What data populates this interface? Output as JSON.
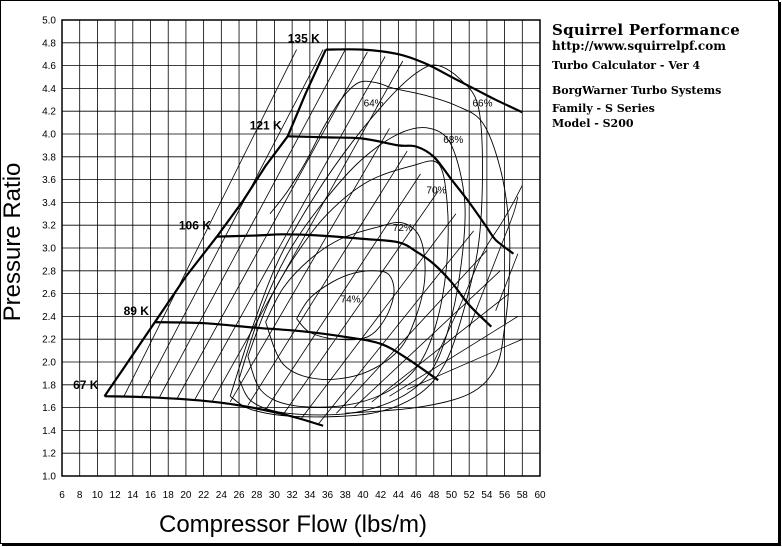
{
  "info": {
    "title": "Squirrel Performance",
    "url": "http://www.squirrelpf.com",
    "calculator": "Turbo Calculator - Ver 4",
    "manufacturer": "BorgWarner Turbo Systems",
    "family": "Family - S Series",
    "model": "Model - S200"
  },
  "chart_data": {
    "type": "line",
    "xlabel": "Compressor Flow (lbs/m)",
    "ylabel": "Pressure Ratio",
    "xlim": [
      6,
      60
    ],
    "ylim": [
      1.0,
      5.0
    ],
    "x_ticks": [
      "6",
      "8",
      "10",
      "12",
      "14",
      "16",
      "18",
      "20",
      "22",
      "24",
      "26",
      "28",
      "30",
      "32",
      "34",
      "36",
      "38",
      "40",
      "42",
      "44",
      "46",
      "48",
      "50",
      "52",
      "54",
      "56",
      "58",
      "60"
    ],
    "y_ticks": [
      "1.0",
      "1.2",
      "1.4",
      "1.6",
      "1.8",
      "2.0",
      "2.2",
      "2.4",
      "2.6",
      "2.8",
      "3.0",
      "3.2",
      "3.4",
      "3.6",
      "3.8",
      "4.0",
      "4.2",
      "4.4",
      "4.6",
      "4.8",
      "5.0"
    ],
    "grid": true,
    "surge_line": [
      [
        10.8,
        1.7
      ],
      [
        13.0,
        1.95
      ],
      [
        16.5,
        2.35
      ],
      [
        20.0,
        2.75
      ],
      [
        23.5,
        3.1
      ],
      [
        26.5,
        3.42
      ],
      [
        29.0,
        3.72
      ],
      [
        31.5,
        3.98
      ],
      [
        33.5,
        4.35
      ],
      [
        35.8,
        4.74
      ]
    ],
    "speed_lines": [
      {
        "name": "67 K",
        "points": [
          [
            10.8,
            1.7
          ],
          [
            16,
            1.69
          ],
          [
            22,
            1.66
          ],
          [
            26,
            1.62
          ],
          [
            30,
            1.56
          ],
          [
            33,
            1.5
          ],
          [
            35.5,
            1.44
          ]
        ]
      },
      {
        "name": "89 K",
        "points": [
          [
            16.5,
            2.35
          ],
          [
            22,
            2.34
          ],
          [
            28,
            2.3
          ],
          [
            33,
            2.27
          ],
          [
            38,
            2.22
          ],
          [
            42,
            2.16
          ],
          [
            45,
            2.03
          ],
          [
            48.5,
            1.84
          ]
        ]
      },
      {
        "name": "106 K",
        "points": [
          [
            23.5,
            3.1
          ],
          [
            28,
            3.11
          ],
          [
            31,
            3.12
          ],
          [
            35,
            3.11
          ],
          [
            40,
            3.08
          ],
          [
            44,
            3.05
          ],
          [
            46,
            2.97
          ],
          [
            48,
            2.86
          ],
          [
            50,
            2.7
          ],
          [
            52,
            2.5
          ],
          [
            54.5,
            2.31
          ]
        ]
      },
      {
        "name": "121 K",
        "points": [
          [
            31.5,
            3.98
          ],
          [
            36,
            3.97
          ],
          [
            40,
            3.96
          ],
          [
            44,
            3.9
          ],
          [
            46,
            3.89
          ],
          [
            48,
            3.8
          ],
          [
            50,
            3.6
          ],
          [
            52,
            3.4
          ],
          [
            54,
            3.18
          ],
          [
            55,
            3.07
          ],
          [
            57,
            2.95
          ]
        ]
      },
      {
        "name": "135 K",
        "points": [
          [
            35.8,
            4.74
          ],
          [
            40,
            4.74
          ],
          [
            44,
            4.7
          ],
          [
            47,
            4.62
          ],
          [
            50,
            4.5
          ],
          [
            53,
            4.38
          ],
          [
            55,
            4.3
          ],
          [
            58,
            4.19
          ]
        ]
      }
    ],
    "efficiency_islands": [
      {
        "label": "74%",
        "points": [
          [
            32.5,
            2.38
          ],
          [
            34,
            2.56
          ],
          [
            36.5,
            2.7
          ],
          [
            39,
            2.78
          ],
          [
            41.5,
            2.8
          ],
          [
            43,
            2.76
          ],
          [
            43.5,
            2.6
          ],
          [
            42.5,
            2.38
          ],
          [
            40.5,
            2.22
          ],
          [
            37,
            2.2
          ],
          [
            34,
            2.26
          ],
          [
            32.5,
            2.38
          ]
        ]
      },
      {
        "label": "72%",
        "points": [
          [
            29,
            2.35
          ],
          [
            31,
            2.65
          ],
          [
            34,
            2.9
          ],
          [
            37.5,
            3.08
          ],
          [
            41.5,
            3.18
          ],
          [
            44.5,
            3.22
          ],
          [
            46.5,
            3.08
          ],
          [
            47,
            2.75
          ],
          [
            46,
            2.4
          ],
          [
            44,
            2.1
          ],
          [
            40,
            1.9
          ],
          [
            35,
            1.85
          ],
          [
            31,
            1.98
          ],
          [
            29,
            2.35
          ]
        ]
      },
      {
        "label": "70%",
        "points": [
          [
            27,
            2.05
          ],
          [
            29.5,
            2.55
          ],
          [
            32.5,
            2.95
          ],
          [
            36,
            3.3
          ],
          [
            40.5,
            3.58
          ],
          [
            45.5,
            3.72
          ],
          [
            48.5,
            3.74
          ],
          [
            49.5,
            3.4
          ],
          [
            49.5,
            2.9
          ],
          [
            48.5,
            2.4
          ],
          [
            46.5,
            2.0
          ],
          [
            43,
            1.75
          ],
          [
            38,
            1.62
          ],
          [
            32,
            1.62
          ],
          [
            28.5,
            1.75
          ],
          [
            27,
            2.05
          ]
        ]
      },
      {
        "label": "68%",
        "points": [
          [
            26,
            1.85
          ],
          [
            28.5,
            2.45
          ],
          [
            31.5,
            2.95
          ],
          [
            35,
            3.35
          ],
          [
            39.5,
            3.75
          ],
          [
            44,
            4.0
          ],
          [
            47.5,
            4.05
          ],
          [
            50,
            3.9
          ],
          [
            51.5,
            3.4
          ],
          [
            51,
            2.8
          ],
          [
            49.5,
            2.25
          ],
          [
            47.5,
            1.9
          ],
          [
            44,
            1.68
          ],
          [
            38.5,
            1.55
          ],
          [
            31.5,
            1.55
          ],
          [
            27.5,
            1.65
          ],
          [
            26,
            1.85
          ]
        ]
      },
      {
        "label": "66%",
        "points": [
          [
            25,
            1.7
          ],
          [
            27.5,
            2.3
          ],
          [
            30.5,
            2.9
          ],
          [
            34.5,
            3.45
          ],
          [
            39,
            3.95
          ],
          [
            43.5,
            4.36
          ],
          [
            46.5,
            4.56
          ],
          [
            48.5,
            4.6
          ],
          [
            51,
            4.48
          ],
          [
            53,
            4.25
          ],
          [
            53.5,
            3.7
          ],
          [
            53,
            3.0
          ],
          [
            51,
            2.35
          ],
          [
            49,
            1.95
          ],
          [
            46,
            1.7
          ],
          [
            41,
            1.55
          ],
          [
            33,
            1.52
          ],
          [
            27.5,
            1.58
          ],
          [
            25,
            1.7
          ]
        ]
      },
      {
        "label": "64%",
        "points": [
          [
            29.5,
            3.3
          ],
          [
            31.5,
            3.5
          ],
          [
            33.5,
            3.75
          ],
          [
            35.5,
            4.05
          ],
          [
            37.5,
            4.3
          ],
          [
            39.5,
            4.45
          ],
          [
            41.5,
            4.45
          ],
          [
            43.5,
            4.4
          ],
          [
            47,
            4.34
          ],
          [
            50.5,
            4.25
          ],
          [
            53.5,
            4.1
          ],
          [
            55.5,
            3.7
          ],
          [
            56.5,
            3.2
          ],
          [
            56.5,
            2.7
          ],
          [
            56,
            2.3
          ],
          [
            55,
            1.95
          ],
          [
            52,
            1.72
          ],
          [
            46,
            1.6
          ],
          [
            38,
            1.55
          ]
        ]
      }
    ],
    "choke_lines": [
      [
        [
          13,
          1.7
        ],
        [
          32.5,
          4.74
        ]
      ],
      [
        [
          15,
          1.7
        ],
        [
          35.5,
          4.74
        ]
      ],
      [
        [
          17,
          1.69
        ],
        [
          38,
          4.74
        ]
      ],
      [
        [
          19,
          1.68
        ],
        [
          40.5,
          4.72
        ]
      ],
      [
        [
          21,
          1.67
        ],
        [
          42.5,
          4.68
        ]
      ],
      [
        [
          23,
          1.66
        ],
        [
          44.5,
          4.64
        ]
      ],
      [
        [
          25,
          1.65
        ],
        [
          43,
          4.05
        ]
      ],
      [
        [
          27,
          1.62
        ],
        [
          45,
          3.85
        ]
      ],
      [
        [
          29,
          1.58
        ],
        [
          46.5,
          3.65
        ]
      ],
      [
        [
          31,
          1.54
        ],
        [
          48.5,
          3.5
        ]
      ],
      [
        [
          33,
          1.5
        ],
        [
          50.5,
          3.3
        ]
      ],
      [
        [
          35,
          1.46
        ],
        [
          52.5,
          3.15
        ]
      ],
      [
        [
          37,
          1.55
        ],
        [
          54,
          2.98
        ]
      ],
      [
        [
          39,
          1.6
        ],
        [
          55.5,
          2.8
        ]
      ],
      [
        [
          41,
          1.65
        ],
        [
          56.5,
          2.6
        ]
      ],
      [
        [
          43,
          1.7
        ],
        [
          57.5,
          2.4
        ]
      ],
      [
        [
          45,
          1.76
        ],
        [
          58,
          2.2
        ]
      ]
    ],
    "extra_right_curves": [
      [
        [
          48,
          2.0
        ],
        [
          51,
          2.5
        ],
        [
          53.5,
          2.95
        ],
        [
          55.5,
          3.2
        ],
        [
          57,
          3.4
        ],
        [
          58,
          3.55
        ]
      ],
      [
        [
          52,
          2.3
        ],
        [
          54,
          2.7
        ],
        [
          55.5,
          3.0
        ],
        [
          57,
          3.3
        ],
        [
          57.5,
          3.45
        ]
      ],
      [
        [
          55,
          2.45
        ],
        [
          56.5,
          2.75
        ],
        [
          57.5,
          2.95
        ]
      ]
    ]
  }
}
